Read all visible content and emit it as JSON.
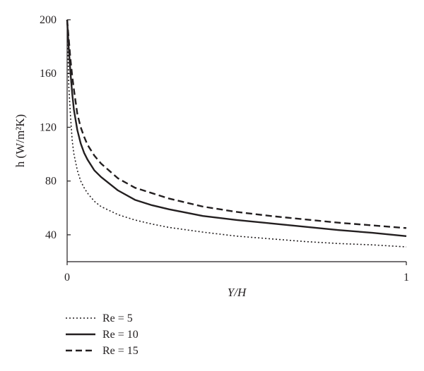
{
  "chart_data": {
    "type": "line",
    "title": "",
    "xlabel": "Y/H",
    "ylabel": "h (W/m²K)",
    "xlim": [
      0,
      1
    ],
    "ylim": [
      20,
      200
    ],
    "x_ticks": [
      0,
      1
    ],
    "x_tick_labels": [
      "0",
      "1"
    ],
    "y_ticks": [
      40,
      80,
      120,
      160,
      200
    ],
    "y_tick_labels": [
      "40",
      "80",
      "120",
      "160",
      "200"
    ],
    "grid": false,
    "legend_position": "bottom-left, below plot",
    "series": [
      {
        "name": "Re = 5",
        "style": "dotted",
        "color": "#231f20",
        "x": [
          0.0,
          0.005,
          0.01,
          0.015,
          0.02,
          0.03,
          0.04,
          0.05,
          0.06,
          0.08,
          0.1,
          0.15,
          0.2,
          0.25,
          0.3,
          0.4,
          0.5,
          0.6,
          0.7,
          0.8,
          0.9,
          1.0
        ],
        "y": [
          200,
          150,
          128,
          110,
          100,
          88,
          80,
          75,
          71,
          65,
          61,
          55,
          51,
          48,
          45.5,
          42,
          39,
          37,
          35,
          33.5,
          32.5,
          31
        ]
      },
      {
        "name": "Re = 10",
        "style": "solid",
        "color": "#231f20",
        "x": [
          0.0,
          0.005,
          0.01,
          0.015,
          0.02,
          0.03,
          0.04,
          0.05,
          0.06,
          0.08,
          0.1,
          0.15,
          0.2,
          0.25,
          0.3,
          0.4,
          0.5,
          0.6,
          0.7,
          0.8,
          0.9,
          1.0
        ],
        "y": [
          200,
          178,
          160,
          145,
          133,
          118,
          108,
          101,
          96,
          88,
          83,
          73,
          66,
          62,
          59,
          54,
          51,
          48.5,
          46,
          43.5,
          41.5,
          39
        ]
      },
      {
        "name": "Re = 15",
        "style": "dashed",
        "color": "#231f20",
        "x": [
          0.0,
          0.005,
          0.01,
          0.015,
          0.02,
          0.03,
          0.04,
          0.05,
          0.06,
          0.08,
          0.1,
          0.15,
          0.2,
          0.25,
          0.3,
          0.4,
          0.5,
          0.6,
          0.7,
          0.8,
          0.9,
          1.0
        ],
        "y": [
          200,
          185,
          170,
          158,
          148,
          130,
          120,
          113,
          107,
          99,
          93,
          82,
          75,
          71,
          67,
          61,
          57,
          54,
          51.5,
          49,
          47,
          45
        ]
      }
    ]
  }
}
